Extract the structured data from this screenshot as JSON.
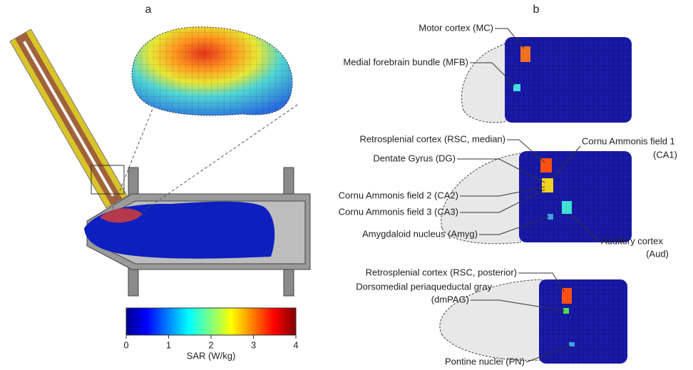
{
  "panel_a": {
    "label": "a",
    "colorbar": {
      "label": "SAR (W/kg)",
      "lim": [
        0,
        4
      ],
      "ticks": [
        0,
        1,
        2,
        3,
        4
      ]
    }
  },
  "panel_b": {
    "label": "b",
    "views": [
      {
        "annotations": [
          {
            "lines": [
              "Motor cortex (MC)"
            ]
          },
          {
            "lines": [
              "Medial forebrain bundle (MFB)"
            ]
          }
        ]
      },
      {
        "annotations": [
          {
            "lines": [
              "Retrosplenial cortex (RSC, median)"
            ]
          },
          {
            "lines": [
              "Dentate Gyrus (DG)"
            ]
          },
          {
            "lines": [
              "Cornu Ammonis field 1",
              "(CA1)"
            ]
          },
          {
            "lines": [
              "Cornu Ammonis field 2 (CA2)"
            ]
          },
          {
            "lines": [
              "Cornu Ammonis field 3 (CA3)"
            ]
          },
          {
            "lines": [
              "Amygdaloid nucleus (Amyg)"
            ]
          },
          {
            "lines": [
              "Auditory cortex",
              "(Aud)"
            ]
          }
        ]
      },
      {
        "annotations": [
          {
            "lines": [
              "Retrosplenial cortex (RSC, posterior)"
            ]
          },
          {
            "lines": [
              "Dorsomedial periaqueductal gray",
              "(dmPAG)"
            ]
          },
          {
            "lines": [
              "Pontine nuclei (PN)"
            ]
          }
        ]
      }
    ]
  }
}
